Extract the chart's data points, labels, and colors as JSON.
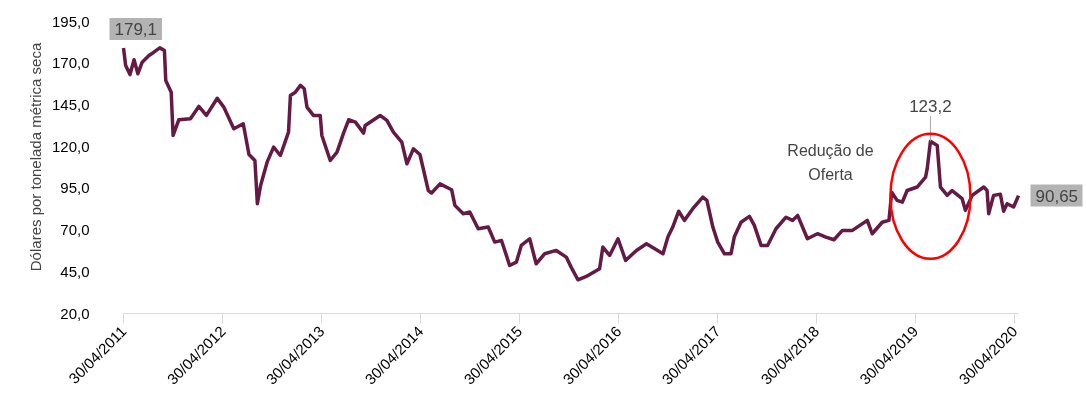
{
  "chart_data": {
    "type": "line",
    "ylabel": "Dólares por tonelada métrica seca",
    "x": [
      "2011-04-30",
      "2011-05-08",
      "2011-05-24",
      "2011-06-08",
      "2011-06-22",
      "2011-07-08",
      "2011-08-02",
      "2011-08-20",
      "2011-09-11",
      "2011-09-28",
      "2011-10-03",
      "2011-10-23",
      "2011-10-30",
      "2011-11-20",
      "2012-01-02",
      "2012-02-02",
      "2012-03-01",
      "2012-04-10",
      "2012-05-04",
      "2012-06-10",
      "2012-07-15",
      "2012-08-05",
      "2012-08-27",
      "2012-09-05",
      "2012-09-17",
      "2012-10-11",
      "2012-11-04",
      "2012-11-29",
      "2012-12-29",
      "2013-01-05",
      "2013-01-23",
      "2013-02-11",
      "2013-02-25",
      "2013-03-07",
      "2013-03-31",
      "2013-04-25",
      "2013-05-01",
      "2013-06-01",
      "2013-06-26",
      "2013-07-20",
      "2013-08-08",
      "2013-09-02",
      "2013-10-02",
      "2013-10-08",
      "2013-12-02",
      "2013-12-27",
      "2014-01-20",
      "2014-02-20",
      "2014-03-11",
      "2014-04-04",
      "2014-04-28",
      "2014-05-29",
      "2014-06-10",
      "2014-07-11",
      "2014-08-23",
      "2014-09-04",
      "2014-10-05",
      "2014-10-29",
      "2014-11-29",
      "2015-01-05",
      "2015-01-29",
      "2015-02-23",
      "2015-03-25",
      "2015-04-19",
      "2015-05-07",
      "2015-06-07",
      "2015-07-01",
      "2015-08-01",
      "2015-09-13",
      "2015-10-20",
      "2015-11-07",
      "2015-12-02",
      "2016-01-02",
      "2016-02-20",
      "2016-03-03",
      "2016-03-28",
      "2016-04-28",
      "2016-05-26",
      "2016-07-05",
      "2016-08-11",
      "2016-10-11",
      "2016-10-29",
      "2016-11-16",
      "2016-12-08",
      "2016-12-29",
      "2017-01-29",
      "2017-03-07",
      "2017-03-22",
      "2017-04-13",
      "2017-05-01",
      "2017-05-26",
      "2017-06-19",
      "2017-07-01",
      "2017-07-26",
      "2017-08-26",
      "2017-09-13",
      "2017-10-08",
      "2017-11-01",
      "2017-12-02",
      "2018-01-08",
      "2018-02-01",
      "2018-02-20",
      "2018-03-28",
      "2018-05-04",
      "2018-06-04",
      "2018-07-04",
      "2018-08-04",
      "2018-09-10",
      "2018-11-04",
      "2018-11-22",
      "2018-12-29",
      "2019-01-23",
      "2019-02-02",
      "2019-02-22",
      "2019-03-13",
      "2019-03-31",
      "2019-05-07",
      "2019-06-07",
      "2019-06-13",
      "2019-06-25",
      "2019-07-20",
      "2019-08-01",
      "2019-08-26",
      "2019-09-13",
      "2019-10-20",
      "2019-11-01",
      "2019-11-26",
      "2020-01-08",
      "2020-01-20",
      "2020-01-26",
      "2020-02-13",
      "2020-03-09",
      "2020-03-21",
      "2020-04-03",
      "2020-04-27",
      "2020-05-15"
    ],
    "series": [
      {
        "color": "#651a45",
        "values": [
          179.1,
          168.6,
          163.2,
          172.1,
          163.7,
          170.6,
          174.6,
          176.6,
          179.2,
          177.6,
          159.6,
          152.6,
          126.7,
          136.1,
          136.7,
          144.1,
          138.7,
          149.0,
          143.7,
          130.7,
          133.7,
          115.3,
          111.7,
          85.8,
          96.7,
          110.7,
          119.7,
          114.7,
          128.7,
          150.7,
          152.6,
          156.7,
          154.7,
          143.7,
          138.7,
          138.7,
          126.7,
          111.7,
          116.7,
          128.1,
          136.1,
          134.7,
          128.1,
          132.7,
          138.7,
          135.7,
          128.7,
          122.7,
          109.7,
          118.7,
          115.3,
          93.7,
          92.2,
          97.7,
          94.2,
          84.8,
          79.8,
          80.8,
          70.8,
          71.8,
          62.8,
          63.8,
          48.8,
          50.8,
          60.8,
          64.8,
          49.8,
          55.8,
          57.8,
          53.8,
          47.8,
          40.2,
          42.2,
          46.8,
          59.8,
          54.8,
          64.8,
          51.8,
          57.8,
          61.8,
          55.8,
          65.8,
          71.8,
          81.3,
          75.8,
          82.8,
          89.7,
          87.8,
          71.8,
          62.8,
          55.8,
          55.8,
          65.8,
          74.7,
          78.2,
          72.8,
          60.8,
          60.8,
          70.8,
          77.7,
          75.8,
          78.8,
          64.8,
          67.8,
          65.8,
          64.2,
          69.8,
          69.8,
          75.8,
          67.8,
          74.7,
          75.8,
          92.7,
          87.8,
          86.7,
          93.7,
          95.8,
          101.7,
          106.7,
          123.2,
          120.7,
          95.8,
          90.8,
          93.7,
          88.8,
          81.8,
          90.8,
          95.8,
          93.7,
          79.8,
          90.8,
          91.5,
          81.3,
          85.8,
          83.8,
          90.65
        ],
        "value_labels": [
          "179,1",
          null,
          null,
          null,
          null,
          null,
          null,
          null,
          null,
          null,
          null,
          null,
          null,
          null,
          null,
          null,
          null,
          null,
          null,
          null,
          null,
          null,
          null,
          null,
          null,
          null,
          null,
          null,
          null,
          null,
          null,
          null,
          null,
          null,
          null,
          null,
          null,
          null,
          null,
          null,
          null,
          null,
          null,
          null,
          null,
          null,
          null,
          null,
          null,
          null,
          null,
          null,
          null,
          null,
          null,
          null,
          null,
          null,
          null,
          null,
          null,
          null,
          null,
          null,
          null,
          null,
          null,
          null,
          null,
          null,
          null,
          null,
          null,
          null,
          null,
          null,
          null,
          null,
          null,
          null,
          null,
          null,
          null,
          null,
          null,
          null,
          null,
          null,
          null,
          null,
          null,
          null,
          null,
          null,
          null,
          null,
          null,
          null,
          null,
          null,
          null,
          null,
          null,
          null,
          null,
          null,
          null,
          null,
          null,
          null,
          null,
          null,
          null,
          null,
          null,
          null,
          null,
          null,
          null,
          "123,2",
          null,
          null,
          null,
          null,
          null,
          null,
          null,
          null,
          null,
          null,
          null,
          null,
          null,
          null,
          null,
          "90,65"
        ]
      }
    ],
    "xlim": [
      "2011-04-30",
      "2020-05-15"
    ],
    "xticks": [
      {
        "value": "2011-04-30",
        "label": "30/04/2011"
      },
      {
        "value": "2012-04-30",
        "label": "30/04/2012"
      },
      {
        "value": "2013-04-30",
        "label": "30/04/2013"
      },
      {
        "value": "2014-04-30",
        "label": "30/04/2014"
      },
      {
        "value": "2015-04-30",
        "label": "30/04/2015"
      },
      {
        "value": "2016-04-30",
        "label": "30/04/2016"
      },
      {
        "value": "2017-04-30",
        "label": "30/04/2017"
      },
      {
        "value": "2018-04-30",
        "label": "30/04/2018"
      },
      {
        "value": "2019-04-30",
        "label": "30/04/2019"
      },
      {
        "value": "2020-04-30",
        "label": "30/04/2020"
      }
    ],
    "ylim": [
      20,
      195
    ],
    "yticks": [
      {
        "value": 20,
        "label": "20,0"
      },
      {
        "value": 45,
        "label": "45,0"
      },
      {
        "value": 70,
        "label": "70,0"
      },
      {
        "value": 95,
        "label": "95,0"
      },
      {
        "value": 120,
        "label": "120,0"
      },
      {
        "value": 145,
        "label": "145,0"
      },
      {
        "value": 170,
        "label": "170,0"
      },
      {
        "value": 195,
        "label": "195,0"
      }
    ],
    "annotations": [
      "Redução de Oferta"
    ],
    "grid": false,
    "marker": "none",
    "line_style": "solid"
  }
}
